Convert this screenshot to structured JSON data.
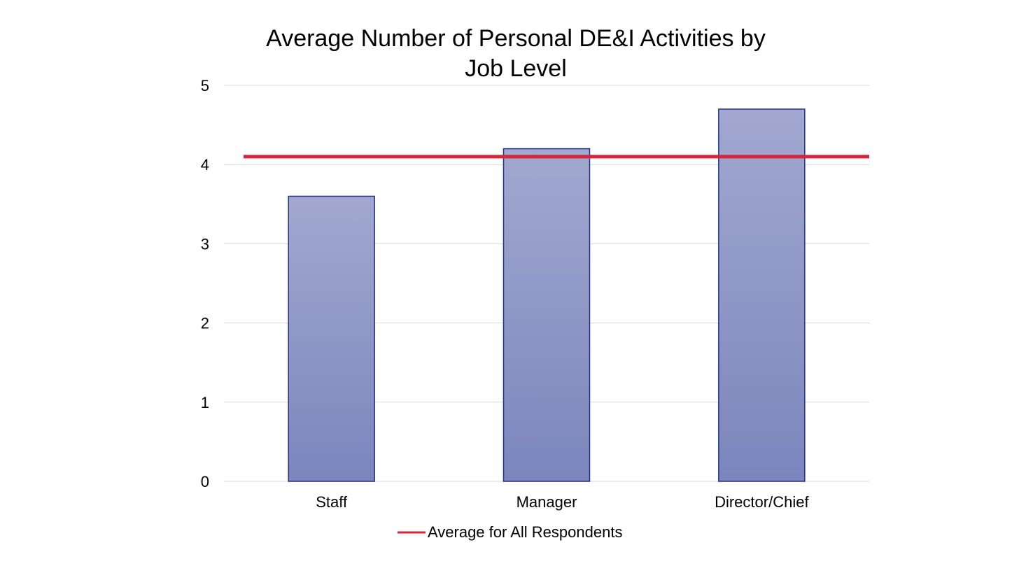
{
  "chart_data": {
    "type": "bar",
    "title_lines": [
      "Average Number of Personal DE&I Activities by",
      "Job Level"
    ],
    "categories": [
      "Staff",
      "Manager",
      "Director/Chief"
    ],
    "values": [
      3.6,
      4.2,
      4.7
    ],
    "reference_line": {
      "name": "Average for All Respondents",
      "value": 4.1,
      "color": "#d3263c"
    },
    "ylim": [
      0,
      5
    ],
    "yticks": [
      "0",
      "1",
      "2",
      "3",
      "4",
      "5"
    ],
    "grid": true,
    "legend_position": "bottom",
    "colors": {
      "bar_top": "#a2a8cf",
      "bar_bottom": "#7b86bd",
      "bar_border": "#1f2f8a",
      "gridline": "#d9d9d9"
    }
  }
}
